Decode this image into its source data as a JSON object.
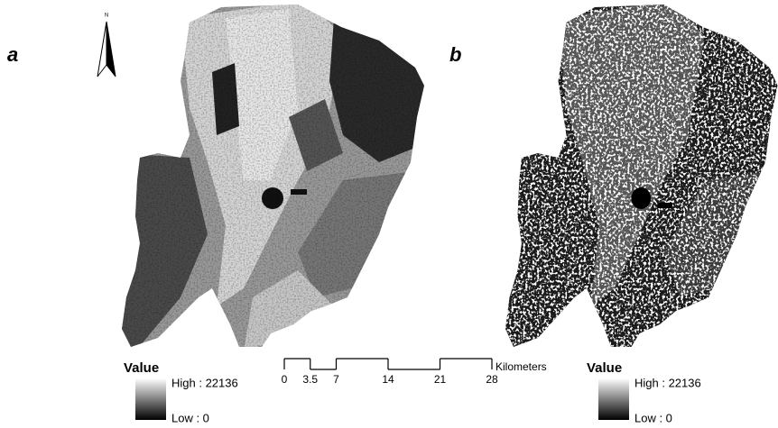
{
  "north_arrow": {
    "label": "N"
  },
  "panels": [
    {
      "label": "a",
      "legend": {
        "title": "Value",
        "high": "High : 22136",
        "low": "Low : 0"
      }
    },
    {
      "label": "b",
      "legend": {
        "title": "Value",
        "high": "High : 22136",
        "low": "Low : 0"
      }
    }
  ],
  "scale_bar": {
    "ticks": [
      0,
      3.5,
      7,
      14,
      21,
      28
    ],
    "unit": "Kilometers"
  }
}
